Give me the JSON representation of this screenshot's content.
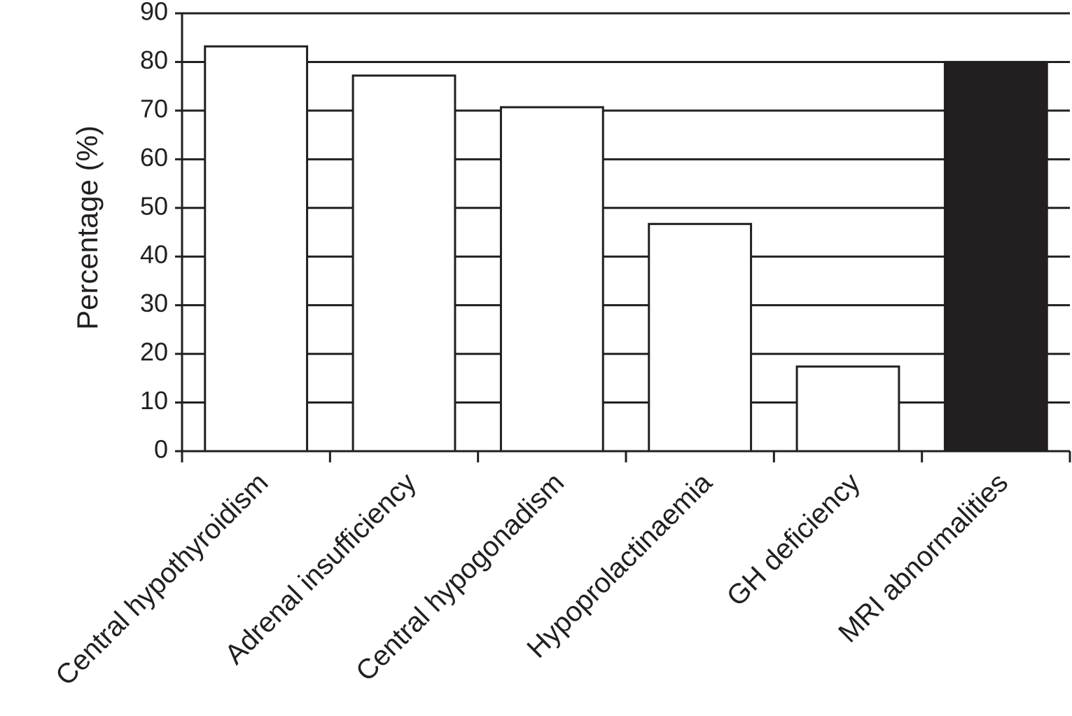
{
  "chart_data": {
    "type": "bar",
    "y_label": "Percentage (%)",
    "categories": [
      "Central hypothyroidism",
      "Adrenal insufficiency",
      "Central hypogonadism",
      "Hypoprolactinaemia",
      "GH deficiency",
      "MRI abnormalities"
    ],
    "values": [
      83.2,
      77.2,
      70.7,
      46.7,
      17.4,
      80
    ],
    "colors": [
      "#ffffff",
      "#ffffff",
      "#ffffff",
      "#ffffff",
      "#ffffff",
      "#231f20"
    ],
    "ylim": [
      0,
      90
    ],
    "yticks": [
      0,
      10,
      20,
      30,
      40,
      50,
      60,
      70,
      80,
      90
    ],
    "grid": true
  }
}
